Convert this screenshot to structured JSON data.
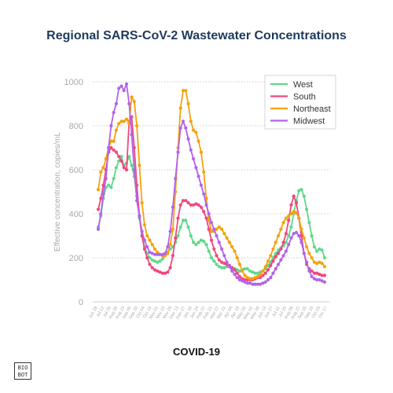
{
  "title": "Regional SARS-CoV-2 Wastewater Concentrations",
  "footer": "COVID-19",
  "logo": {
    "line1": "BIO",
    "line2": "BOT"
  },
  "chart_data": {
    "type": "line",
    "title": "Regional SARS-CoV-2 Wastewater Concentrations",
    "ylabel": "Effective concentration, copies/mL",
    "xlabel": "",
    "ylim": [
      0,
      1000
    ],
    "yticks": [
      0,
      200,
      400,
      600,
      800,
      1000
    ],
    "grid": true,
    "legend_position": "top-right",
    "xtick_labels": [
      "Jun 28",
      "Jul 12",
      "Jul 26",
      "Aug 09",
      "Aug 23",
      "Sep 06",
      "Sep 20",
      "Oct 04",
      "Oct 18",
      "Nov 01",
      "Nov 15",
      "Nov 29",
      "Dec 13",
      "Dec 27",
      "Jan 10",
      "Jan 24",
      "Feb 07",
      "Feb 21",
      "Mar 07",
      "Mar 21",
      "Apr 04",
      "Apr 18",
      "May 02",
      "May 16",
      "May 30",
      "Jun 13",
      "Jun 27",
      "Jul 11",
      "Jul 25",
      "Aug 08",
      "Aug 22",
      "Sep 05",
      "Sep 19",
      "Oct 03",
      "Oct 17"
    ],
    "series": [
      {
        "name": "West",
        "color": "#5fd98a",
        "values": [
          340,
          390,
          470,
          520,
          530,
          520,
          560,
          610,
          640,
          660,
          620,
          630,
          660,
          620,
          570,
          480,
          380,
          300,
          250,
          220,
          200,
          190,
          185,
          180,
          185,
          195,
          210,
          225,
          240,
          250,
          270,
          300,
          340,
          370,
          370,
          340,
          300,
          270,
          260,
          270,
          280,
          275,
          260,
          230,
          200,
          185,
          170,
          160,
          155,
          155,
          160,
          160,
          155,
          150,
          145,
          140,
          145,
          150,
          150,
          140,
          135,
          130,
          130,
          135,
          140,
          150,
          165,
          180,
          200,
          220,
          235,
          245,
          255,
          270,
          300,
          340,
          400,
          460,
          505,
          510,
          480,
          420,
          360,
          300,
          250,
          230,
          240,
          235,
          200
        ]
      },
      {
        "name": "South",
        "color": "#f0477f",
        "values": [
          420,
          470,
          530,
          600,
          680,
          700,
          690,
          680,
          660,
          640,
          610,
          600,
          820,
          840,
          700,
          530,
          390,
          300,
          240,
          200,
          170,
          155,
          145,
          140,
          135,
          130,
          130,
          135,
          155,
          210,
          290,
          380,
          440,
          460,
          460,
          450,
          440,
          440,
          445,
          440,
          430,
          410,
          380,
          330,
          280,
          240,
          210,
          190,
          180,
          175,
          170,
          165,
          155,
          145,
          130,
          115,
          105,
          100,
          100,
          100,
          100,
          105,
          110,
          110,
          120,
          130,
          145,
          165,
          185,
          205,
          220,
          240,
          270,
          310,
          370,
          440,
          480,
          450,
          380,
          300,
          220,
          170,
          150,
          140,
          130,
          130,
          125,
          120,
          120
        ]
      },
      {
        "name": "Northeast",
        "color": "#f5a20e",
        "values": [
          510,
          590,
          610,
          650,
          700,
          730,
          730,
          780,
          810,
          820,
          820,
          830,
          810,
          930,
          910,
          800,
          620,
          450,
          350,
          300,
          280,
          260,
          240,
          225,
          215,
          210,
          210,
          220,
          260,
          330,
          500,
          700,
          880,
          960,
          960,
          900,
          820,
          780,
          770,
          730,
          680,
          590,
          470,
          370,
          320,
          320,
          330,
          340,
          330,
          310,
          290,
          270,
          250,
          230,
          200,
          170,
          140,
          120,
          110,
          105,
          105,
          110,
          115,
          125,
          140,
          160,
          185,
          210,
          240,
          270,
          300,
          330,
          360,
          380,
          390,
          400,
          410,
          405,
          380,
          330,
          290,
          250,
          220,
          200,
          180,
          175,
          180,
          175,
          160
        ]
      },
      {
        "name": "Midwest",
        "color": "#b262ee",
        "values": [
          330,
          400,
          490,
          560,
          700,
          800,
          860,
          900,
          970,
          980,
          960,
          990,
          900,
          760,
          600,
          460,
          390,
          320,
          280,
          250,
          225,
          220,
          215,
          215,
          215,
          215,
          220,
          250,
          320,
          430,
          560,
          680,
          790,
          820,
          790,
          740,
          690,
          650,
          610,
          570,
          530,
          490,
          440,
          400,
          360,
          330,
          300,
          270,
          240,
          210,
          180,
          160,
          140,
          125,
          110,
          100,
          95,
          90,
          85,
          85,
          80,
          80,
          80,
          80,
          85,
          90,
          100,
          110,
          130,
          150,
          170,
          190,
          210,
          230,
          260,
          290,
          310,
          315,
          300,
          270,
          220,
          180,
          140,
          115,
          105,
          100,
          100,
          95,
          90
        ]
      }
    ]
  }
}
